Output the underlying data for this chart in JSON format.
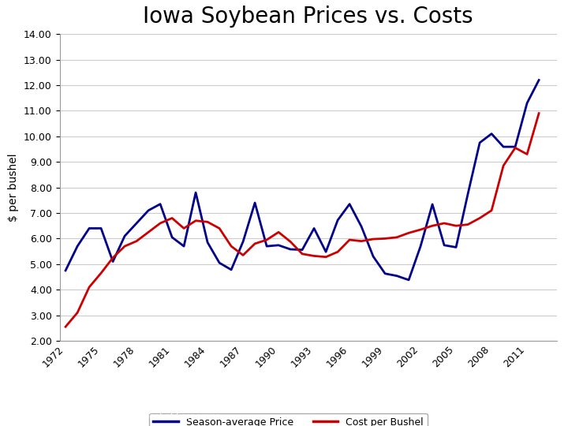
{
  "title": "Iowa Soybean Prices vs. Costs",
  "ylabel": "$ per bushel",
  "years": [
    1972,
    1973,
    1974,
    1975,
    1976,
    1977,
    1978,
    1979,
    1980,
    1981,
    1982,
    1983,
    1984,
    1985,
    1986,
    1987,
    1988,
    1989,
    1990,
    1991,
    1992,
    1993,
    1994,
    1995,
    1996,
    1997,
    1998,
    1999,
    2000,
    2001,
    2002,
    2003,
    2004,
    2005,
    2006,
    2007,
    2008,
    2009,
    2010,
    2011,
    2012
  ],
  "season_avg_price": [
    4.75,
    5.7,
    6.4,
    6.4,
    5.1,
    6.1,
    6.6,
    7.1,
    7.35,
    6.05,
    5.7,
    7.8,
    5.85,
    5.05,
    4.78,
    5.88,
    7.4,
    5.7,
    5.74,
    5.58,
    5.56,
    6.4,
    5.48,
    6.72,
    7.35,
    6.47,
    5.3,
    4.63,
    4.54,
    4.38,
    5.7,
    7.34,
    5.74,
    5.66,
    7.75,
    9.75,
    10.1,
    9.59,
    9.59,
    11.3,
    12.2
  ],
  "cost_per_bushel": [
    2.55,
    3.1,
    4.1,
    4.65,
    5.25,
    5.7,
    5.9,
    6.25,
    6.6,
    6.8,
    6.4,
    6.7,
    6.65,
    6.4,
    5.7,
    5.35,
    5.8,
    5.95,
    6.25,
    5.88,
    5.4,
    5.32,
    5.28,
    5.48,
    5.95,
    5.9,
    5.98,
    6.0,
    6.05,
    6.22,
    6.35,
    6.5,
    6.6,
    6.5,
    6.55,
    6.8,
    7.1,
    8.85,
    9.55,
    9.3,
    10.9
  ],
  "price_color": "#00008B",
  "cost_color": "#CC0000",
  "ylim": [
    2.0,
    14.0
  ],
  "yticks": [
    2.0,
    3.0,
    4.0,
    5.0,
    6.0,
    7.0,
    8.0,
    9.0,
    10.0,
    11.0,
    12.0,
    13.0,
    14.0
  ],
  "xtick_years": [
    1972,
    1975,
    1978,
    1981,
    1984,
    1987,
    1990,
    1993,
    1996,
    1999,
    2002,
    2005,
    2008,
    2011
  ],
  "legend_price": "Season-average Price",
  "legend_cost": "Cost per Bushel",
  "footer_bg_color": "#B22222",
  "title_bar_color": "#B22222",
  "background_color": "#FFFFFF",
  "grid_color": "#CCCCCC"
}
